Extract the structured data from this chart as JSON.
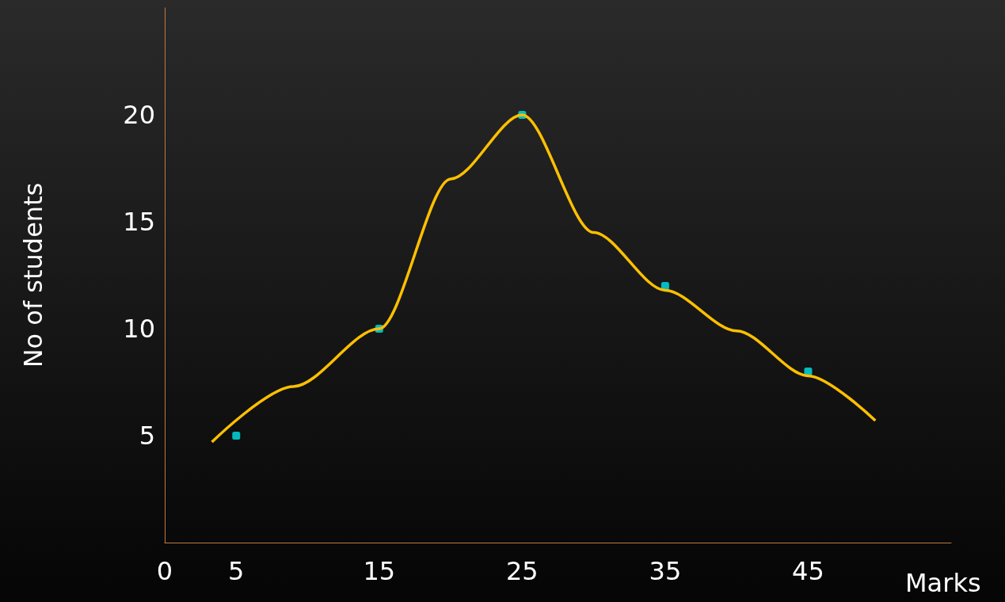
{
  "chart_data": {
    "type": "scatter",
    "xlabel": "Marks",
    "ylabel": "No of students",
    "xlim": [
      0,
      55
    ],
    "xticks": [
      0,
      5,
      15,
      25,
      35,
      45
    ],
    "ylim": [
      0,
      25
    ],
    "yticks": [
      5,
      10,
      15,
      20
    ],
    "grid": false,
    "marker": "square",
    "series": [
      {
        "type": "line",
        "color": "#ffc000",
        "marker": "none",
        "x": [
          3.3,
          9,
          15,
          20,
          25,
          30,
          35,
          40,
          45,
          49.7
        ],
        "values": [
          4.7,
          7.3,
          10,
          17,
          20,
          14.5,
          11.8,
          9.9,
          7.8,
          5.7
        ]
      },
      {
        "color": "#00e5ee",
        "x": [
          5,
          15,
          25,
          35,
          45
        ],
        "values": [
          5,
          10,
          20,
          12,
          8
        ]
      }
    ]
  }
}
